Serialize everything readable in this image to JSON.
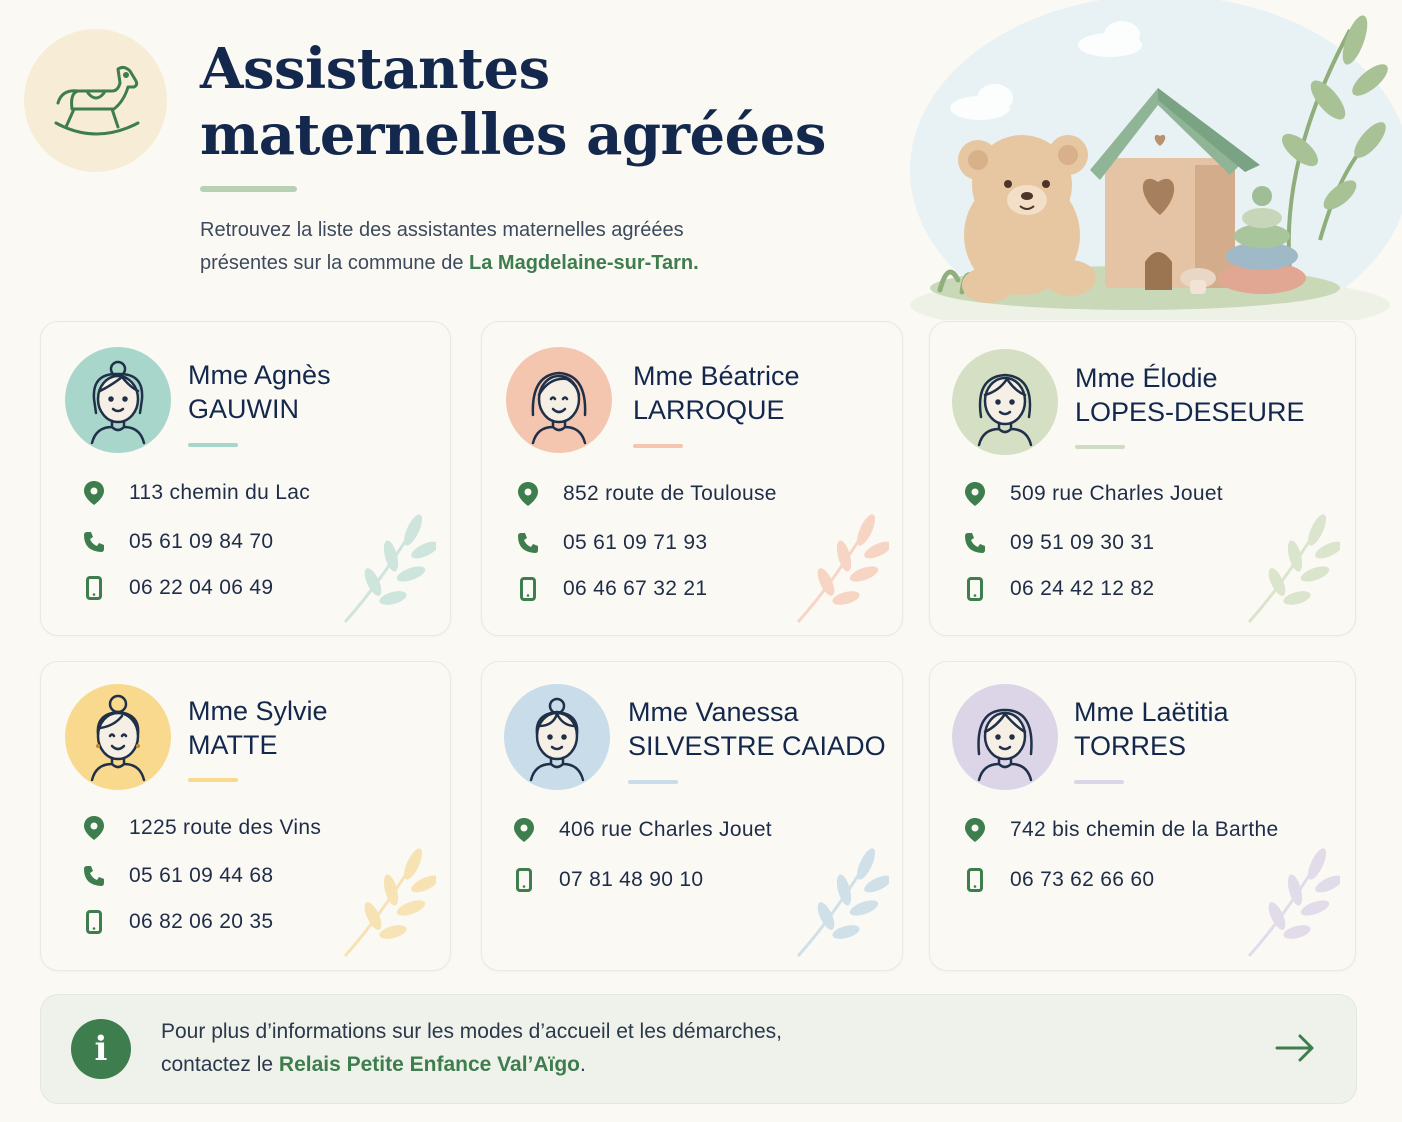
{
  "header": {
    "title": "Assistantes maternelles agréées",
    "intro_line1": "Retrouvez la liste des assistantes maternelles agréées",
    "intro_line2_prefix": "présentes sur la commune de ",
    "intro_highlight": "La Magdelaine-sur-Tarn",
    "intro_suffix": ".",
    "logo_icon": "rocking-horse-icon",
    "hero_icon": "teddy-bear-and-birdhouse-illustration"
  },
  "colors": {
    "brand_green": "#3e7d4d",
    "title_navy": "#13284c",
    "background": "#fbf9f4"
  },
  "assistants": [
    {
      "first": "Mme Agnès",
      "last": "GAUWIN",
      "address": "113 chemin du Lac",
      "phone": "05 61 09 84 70",
      "mobile": "06 22 04 06 49",
      "accent": "#a9d6cb"
    },
    {
      "first": "Mme Béatrice",
      "last": "LARROQUE",
      "address": "852 route de Toulouse",
      "phone": "05 61 09 71 93",
      "mobile": "06 46 67 32 21",
      "accent": "#f4c6b0"
    },
    {
      "first": "Mme Élodie",
      "last": "LOPES-DESEURE",
      "address": "509 rue Charles Jouet",
      "phone": "09 51 09 30 31",
      "mobile": "06 24 42 12 82",
      "accent": "#d4dfc4"
    },
    {
      "first": "Mme Sylvie",
      "last": "MATTE",
      "address": "1225 route des Vins",
      "phone": "05 61 09 44 68",
      "mobile": "06 82 06 20 35",
      "accent": "#f8d98e"
    },
    {
      "first": "Mme Vanessa",
      "last": "SILVESTRE CAIADO",
      "address": "406 rue Charles Jouet",
      "mobile": "07 81 48 90 10",
      "accent": "#c8dcea"
    },
    {
      "first": "Mme Laëtitia",
      "last": "TORRES",
      "address": "742 bis chemin de la Barthe",
      "mobile": "06 73 62 66 60",
      "accent": "#dcd5e8"
    }
  ],
  "info": {
    "line1": "Pour plus d’informations sur les modes d’accueil et les démarches,",
    "line2_prefix": "contactez le ",
    "highlight": "Relais Petite Enfance Val’Aïgo",
    "suffix": ".",
    "icon": "info-icon",
    "arrow_icon": "arrow-right-icon"
  }
}
